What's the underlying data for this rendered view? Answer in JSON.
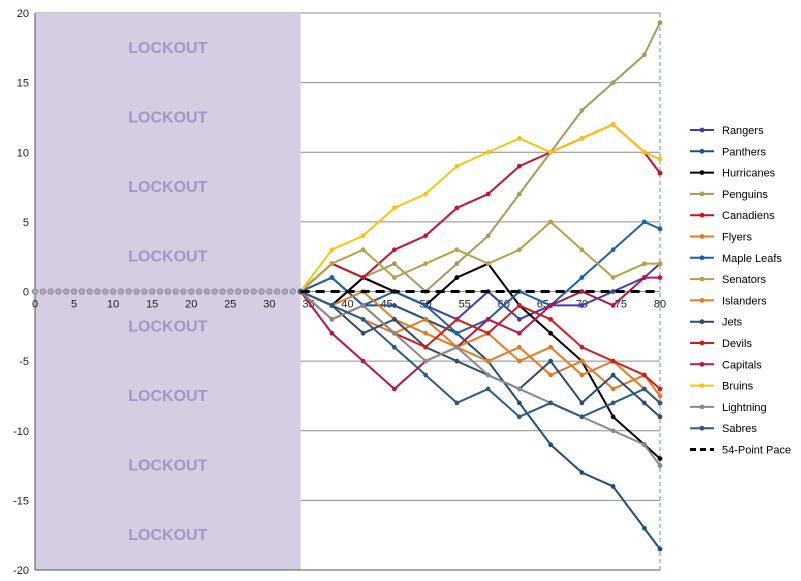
{
  "chart_data": {
    "type": "line",
    "title": "",
    "xlabel": "",
    "ylabel": "",
    "xlim": [
      0,
      80
    ],
    "ylim": [
      -20,
      20
    ],
    "x_ticks": [
      "0",
      "5",
      "10",
      "15",
      "20",
      "25",
      "30",
      "35",
      "40",
      "45",
      "50",
      "55",
      "60",
      "65",
      "70",
      "75",
      "80"
    ],
    "y_ticks": [
      "20",
      "15",
      "10",
      "5",
      "0",
      "-5",
      "-10",
      "-15",
      "-20"
    ],
    "grid": "horizontal",
    "legend_position": "right",
    "lockout": {
      "x_start": 0,
      "x_end": 34,
      "label": "LOCKOUT",
      "color": "#d5cde2"
    },
    "series": [
      {
        "name": "Rangers",
        "color": "#3b3bb8",
        "x": [
          34,
          38,
          42,
          46,
          50,
          54,
          58,
          62,
          66,
          70,
          74,
          78,
          80
        ],
        "y": [
          0,
          -1,
          1,
          0,
          -1,
          -2,
          0,
          -2,
          -1,
          -1,
          0,
          1,
          2
        ]
      },
      {
        "name": "Panthers",
        "color": "#1f4e79",
        "x": [
          34,
          38,
          42,
          46,
          50,
          54,
          58,
          62,
          66,
          70,
          74,
          78,
          80
        ],
        "y": [
          0,
          1,
          -1,
          -1,
          -2,
          -3,
          -5,
          -8,
          -11,
          -13,
          -14,
          -17,
          -18.5
        ]
      },
      {
        "name": "Hurricanes",
        "color": "#000000",
        "x": [
          34,
          38,
          42,
          46,
          50,
          54,
          58,
          62,
          66,
          70,
          74,
          78,
          80
        ],
        "y": [
          0,
          -1,
          1,
          0,
          -1,
          1,
          2,
          -1,
          -3,
          -5,
          -9,
          -11,
          -12
        ]
      },
      {
        "name": "Penguins",
        "color": "#a89a5c",
        "x": [
          34,
          38,
          42,
          46,
          50,
          54,
          58,
          62,
          66,
          70,
          74,
          78,
          80
        ],
        "y": [
          0,
          2,
          1,
          2,
          0,
          2,
          4,
          7,
          10,
          13,
          15,
          17,
          19.3
        ]
      },
      {
        "name": "Canadiens",
        "color": "#c8102e",
        "x": [
          34,
          38,
          42,
          46,
          50,
          54,
          58,
          62,
          66,
          70,
          74,
          78,
          80
        ],
        "y": [
          0,
          2,
          1,
          3,
          4,
          6,
          7,
          9,
          10,
          11,
          12,
          10,
          8.5
        ]
      },
      {
        "name": "Flyers",
        "color": "#e87722",
        "x": [
          34,
          38,
          42,
          46,
          50,
          54,
          58,
          62,
          66,
          70,
          74,
          78,
          80
        ],
        "y": [
          0,
          -1,
          -2,
          -3,
          -2,
          -4,
          -5,
          -4,
          -6,
          -5,
          -7,
          -6,
          -7.5
        ]
      },
      {
        "name": "Maple Leafs",
        "color": "#1f5fa8",
        "x": [
          34,
          38,
          42,
          46,
          50,
          54,
          58,
          62,
          66,
          70,
          74,
          78,
          80
        ],
        "y": [
          0,
          1,
          -1,
          0,
          -1,
          -3,
          -2,
          0,
          -1,
          1,
          3,
          5,
          4.5
        ]
      },
      {
        "name": "Senators",
        "color": "#b8a046",
        "x": [
          34,
          38,
          42,
          46,
          50,
          54,
          58,
          62,
          66,
          70,
          74,
          78,
          80
        ],
        "y": [
          0,
          2,
          3,
          1,
          2,
          3,
          2,
          3,
          5,
          3,
          1,
          2,
          2
        ]
      },
      {
        "name": "Islanders",
        "color": "#e07b20",
        "x": [
          34,
          38,
          42,
          46,
          50,
          54,
          58,
          62,
          66,
          70,
          74,
          78,
          80
        ],
        "y": [
          0,
          -1,
          0,
          -2,
          -3,
          -4,
          -3,
          -5,
          -4,
          -6,
          -5,
          -7,
          -8
        ]
      },
      {
        "name": "Jets",
        "color": "#2c4c6e",
        "x": [
          34,
          38,
          42,
          46,
          50,
          54,
          58,
          62,
          66,
          70,
          74,
          78,
          80
        ],
        "y": [
          0,
          -1,
          -3,
          -2,
          -4,
          -5,
          -6,
          -7,
          -5,
          -8,
          -6,
          -8,
          -9
        ]
      },
      {
        "name": "Devils",
        "color": "#d11a1a",
        "x": [
          34,
          38,
          42,
          46,
          50,
          54,
          58,
          62,
          66,
          70,
          74,
          78,
          80
        ],
        "y": [
          0,
          -2,
          -1,
          -3,
          -4,
          -2,
          -3,
          -1,
          -2,
          -4,
          -5,
          -6,
          -7
        ]
      },
      {
        "name": "Capitals",
        "color": "#b5164b",
        "x": [
          34,
          38,
          42,
          46,
          50,
          54,
          58,
          62,
          66,
          70,
          74,
          78,
          80
        ],
        "y": [
          0,
          -3,
          -5,
          -7,
          -5,
          -4,
          -2,
          -3,
          -1,
          0,
          -1,
          1,
          1
        ]
      },
      {
        "name": "Bruins",
        "color": "#f6c40f",
        "x": [
          34,
          38,
          42,
          46,
          50,
          54,
          58,
          62,
          66,
          70,
          74,
          78,
          80
        ],
        "y": [
          0,
          3,
          4,
          6,
          7,
          9,
          10,
          11,
          10,
          11,
          12,
          10,
          9.5
        ]
      },
      {
        "name": "Lightning",
        "color": "#8a8a8a",
        "x": [
          34,
          38,
          42,
          46,
          50,
          54,
          58,
          62,
          66,
          70,
          74,
          78,
          80
        ],
        "y": [
          0,
          -2,
          -1,
          -3,
          -5,
          -4,
          -6,
          -7,
          -8,
          -9,
          -10,
          -11,
          -12.5
        ]
      },
      {
        "name": "Sabres",
        "color": "#2b5a86",
        "x": [
          34,
          38,
          42,
          46,
          50,
          54,
          58,
          62,
          66,
          70,
          74,
          78,
          80
        ],
        "y": [
          0,
          -1,
          -2,
          -4,
          -6,
          -8,
          -7,
          -9,
          -8,
          -9,
          -8,
          -7,
          -8
        ]
      },
      {
        "name": "54-Point Pace",
        "color": "#000000",
        "dashed": true,
        "x": [
          34,
          80
        ],
        "y": [
          0,
          0
        ]
      }
    ]
  }
}
